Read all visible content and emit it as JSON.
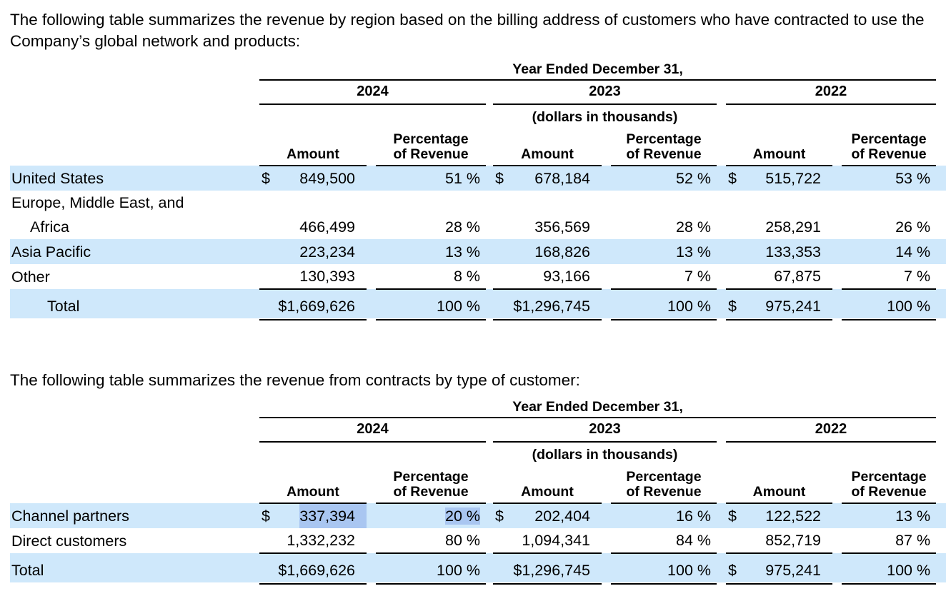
{
  "colors": {
    "row_highlight": "#cfe8fb",
    "text_selection": "#a9c6f1"
  },
  "paragraphs": {
    "region_intro": "The following table summarizes the revenue by region based on the billing address of customers who have contracted to use the Company’s global network and products:",
    "customer_type_intro": "The following table summarizes the revenue from contracts by type of customer:"
  },
  "tables": [
    {
      "id": "revenue-by-region",
      "period_header": "Year Ended December 31,",
      "years": [
        "2024",
        "2023",
        "2022"
      ],
      "units_note": "(dollars in thousands)",
      "amount_header": "Amount",
      "percentage_header_lines": [
        "Percentage",
        "of Revenue"
      ],
      "rows": [
        {
          "label_lines": [
            "United States"
          ],
          "shaded": true,
          "cells": [
            {
              "currency": "$",
              "amount": "849,500",
              "pct": "51 %"
            },
            {
              "currency": "$",
              "amount": "678,184",
              "pct": "52 %"
            },
            {
              "currency": "$",
              "amount": "515,722",
              "pct": "53 %"
            }
          ]
        },
        {
          "label_lines": [
            "Europe, Middle East, and",
            "Africa"
          ],
          "shaded": false,
          "cells": [
            {
              "currency": "",
              "amount": "466,499",
              "pct": "28 %"
            },
            {
              "currency": "",
              "amount": "356,569",
              "pct": "28 %"
            },
            {
              "currency": "",
              "amount": "258,291",
              "pct": "26 %"
            }
          ]
        },
        {
          "label_lines": [
            "Asia Pacific"
          ],
          "shaded": true,
          "cells": [
            {
              "currency": "",
              "amount": "223,234",
              "pct": "13 %"
            },
            {
              "currency": "",
              "amount": "168,826",
              "pct": "13 %"
            },
            {
              "currency": "",
              "amount": "133,353",
              "pct": "14 %"
            }
          ]
        },
        {
          "label_lines": [
            "Other"
          ],
          "shaded": false,
          "cells": [
            {
              "currency": "",
              "amount": "130,393",
              "pct": "8 %"
            },
            {
              "currency": "",
              "amount": "93,166",
              "pct": "7 %"
            },
            {
              "currency": "",
              "amount": "67,875",
              "pct": "7 %"
            }
          ]
        },
        {
          "label_lines": [
            "Total"
          ],
          "shaded": true,
          "is_total": true,
          "label_indented": true,
          "cells": [
            {
              "currency": "",
              "amount": "$1,669,626",
              "pct": "100 %"
            },
            {
              "currency": "",
              "amount": "$1,296,745",
              "pct": "100 %"
            },
            {
              "currency": "$",
              "amount": "975,241",
              "pct": "100 %"
            }
          ]
        }
      ]
    },
    {
      "id": "revenue-by-customer-type",
      "period_header": "Year Ended December 31,",
      "years": [
        "2024",
        "2023",
        "2022"
      ],
      "units_note": "(dollars in thousands)",
      "amount_header": "Amount",
      "percentage_header_lines": [
        "Percentage",
        "of Revenue"
      ],
      "rows": [
        {
          "label_lines": [
            "Channel partners"
          ],
          "shaded": true,
          "cells": [
            {
              "currency": "$",
              "amount": "337,394",
              "pct": "20 %",
              "amount_selected": true,
              "pct_selected": true
            },
            {
              "currency": "$",
              "amount": "202,404",
              "pct": "16 %"
            },
            {
              "currency": "$",
              "amount": "122,522",
              "pct": "13 %"
            }
          ]
        },
        {
          "label_lines": [
            "Direct customers"
          ],
          "shaded": false,
          "cells": [
            {
              "currency": "",
              "amount": "1,332,232",
              "pct": "80 %"
            },
            {
              "currency": "",
              "amount": "1,094,341",
              "pct": "84 %"
            },
            {
              "currency": "",
              "amount": "852,719",
              "pct": "87 %"
            }
          ]
        },
        {
          "label_lines": [
            "Total"
          ],
          "shaded": true,
          "is_total": true,
          "label_indented": false,
          "cells": [
            {
              "currency": "",
              "amount": "$1,669,626",
              "pct": "100 %"
            },
            {
              "currency": "",
              "amount": "$1,296,745",
              "pct": "100 %"
            },
            {
              "currency": "$",
              "amount": "975,241",
              "pct": "100 %"
            }
          ]
        }
      ]
    }
  ]
}
